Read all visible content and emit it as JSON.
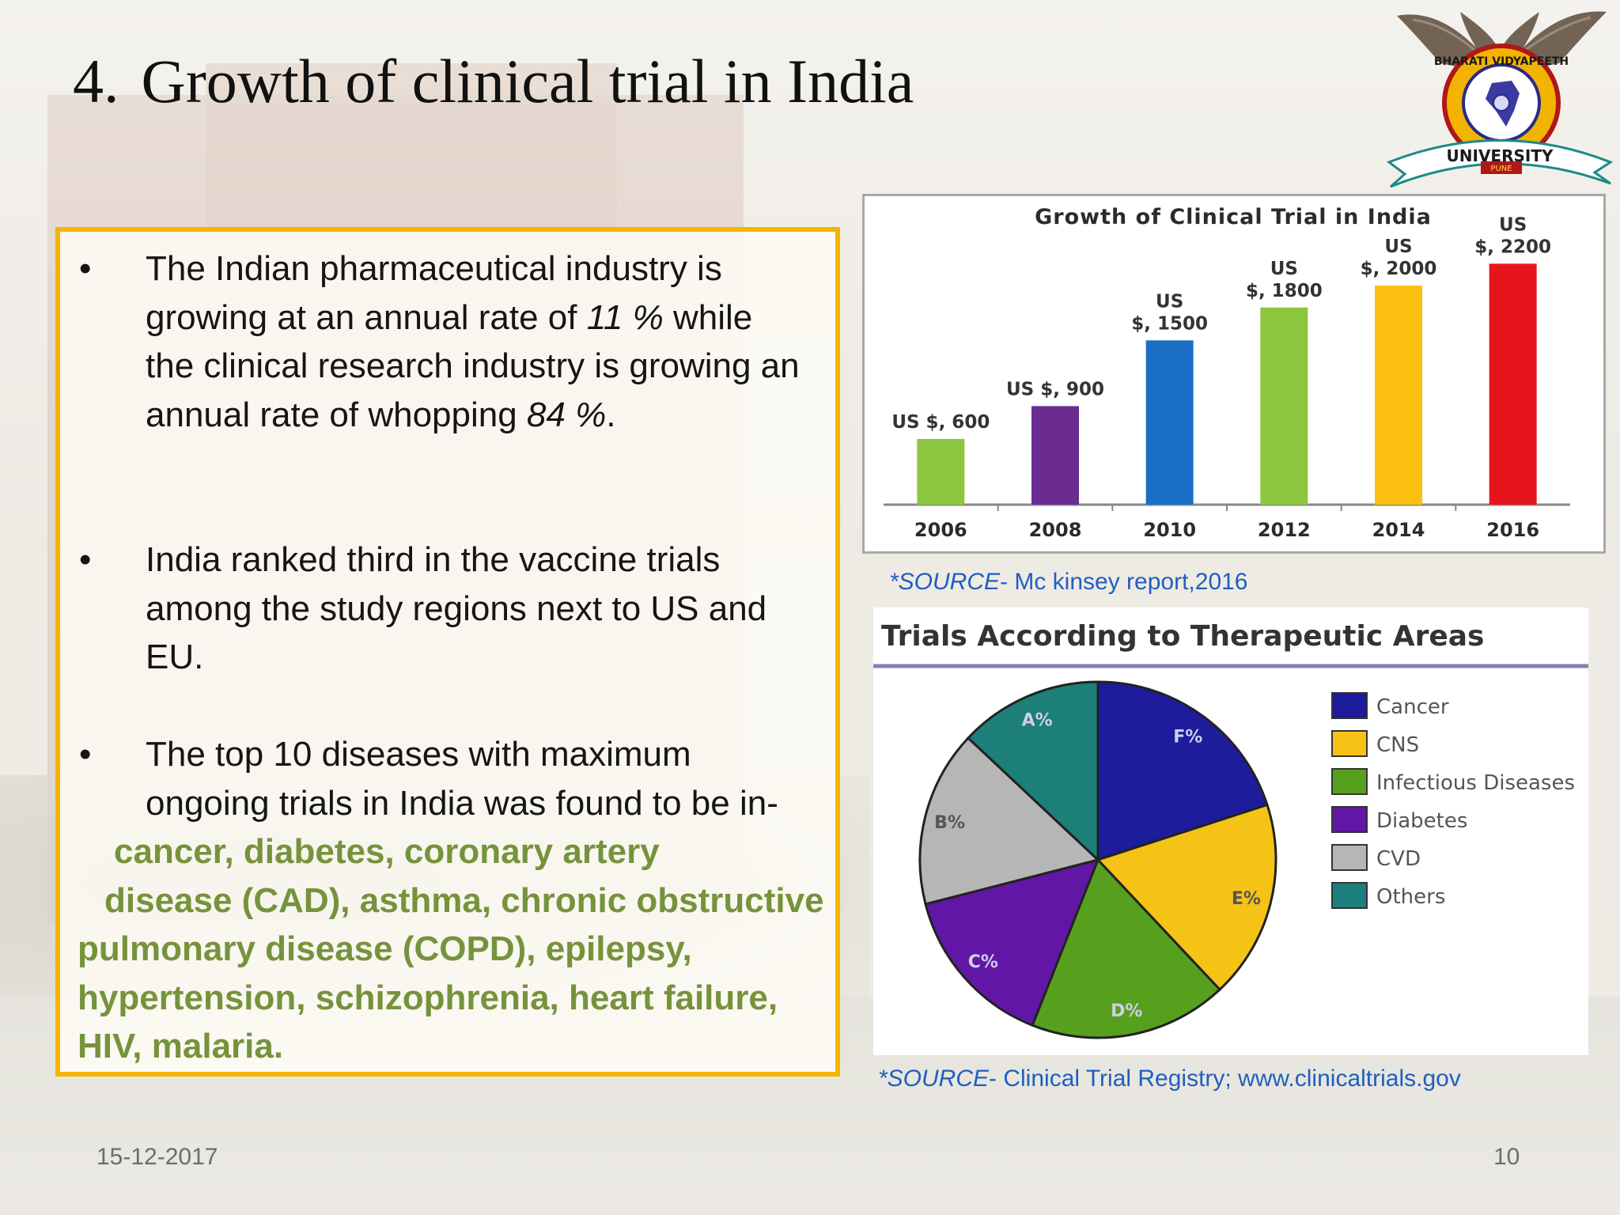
{
  "slide": {
    "number": "4.",
    "title": "Growth of clinical trial in India",
    "logo_text": {
      "arc": "BHARATI VIDYAPEETH",
      "banner": "UNIVERSITY",
      "city": "PUNE"
    }
  },
  "bullets": {
    "b1": {
      "l1": "The Indian pharmaceutical industry is",
      "l2_pre": "growing at an annual rate of ",
      "l2_em": "11 %",
      "l2_post": " while",
      "l3": "the clinical research industry is growing an",
      "l4_pre": "annual rate of whopping ",
      "l4_em": "84 %",
      "l4_post": "."
    },
    "b2": {
      "l1": "India ranked third in the vaccine trials",
      "l2": "among the study regions next to US and",
      "l3": "EU."
    },
    "b3": {
      "l1": "The top 10 diseases with maximum",
      "l2": "ongoing trials in  India was found to be in-",
      "g1": "cancer, diabetes, coronary artery",
      "g2": "disease (CAD), asthma, chronic obstructive",
      "g3": "pulmonary disease (COPD), epilepsy,",
      "g4": "hypertension, schizophrenia, heart failure,",
      "g5": "HIV, malaria."
    }
  },
  "sources": {
    "s1_em": "*SOURCE",
    "s1_rest": "- Mc kinsey report,2016",
    "s2_em": "*SOURCE",
    "s2_rest": "- Clinical Trial Registry; www.clinicaltrials.gov"
  },
  "footer": {
    "date": "15-12-2017",
    "page": "10"
  },
  "chart_data": [
    {
      "type": "bar",
      "title": "Growth of Clinical Trial in India",
      "categories": [
        "2006",
        "2008",
        "2010",
        "2012",
        "2014",
        "2016"
      ],
      "values": [
        600,
        900,
        1500,
        1800,
        2000,
        2200
      ],
      "data_labels": [
        [
          "US $, 600"
        ],
        [
          "US $, 900"
        ],
        [
          "US",
          "$, 1500"
        ],
        [
          "US",
          "$, 1800"
        ],
        [
          "US",
          "$, 2000"
        ],
        [
          "US",
          "$, 2200"
        ]
      ],
      "colors": [
        "#8cc63f",
        "#6a2c91",
        "#1a6fc4",
        "#8cc63f",
        "#fcbf0f",
        "#e8141b"
      ],
      "ylim": [
        0,
        2600
      ],
      "grid": false
    },
    {
      "type": "pie",
      "title": "Trials According to Therapeutic Areas",
      "slices": [
        {
          "label": "F%",
          "legend": "Cancer",
          "value": 20,
          "color": "#1c1c9c"
        },
        {
          "label": "E%",
          "legend": "CNS",
          "value": 18,
          "color": "#f5c216"
        },
        {
          "label": "D%",
          "legend": "Infectious Diseases",
          "value": 18,
          "color": "#56a01e"
        },
        {
          "label": "C%",
          "legend": "Diabetes",
          "value": 15,
          "color": "#6216a6"
        },
        {
          "label": "B%",
          "legend": "CVD",
          "value": 16,
          "color": "#b6b6b6"
        },
        {
          "label": "A%",
          "legend": "Others",
          "value": 13,
          "color": "#1c7f79"
        }
      ],
      "legend_position": "right"
    }
  ]
}
